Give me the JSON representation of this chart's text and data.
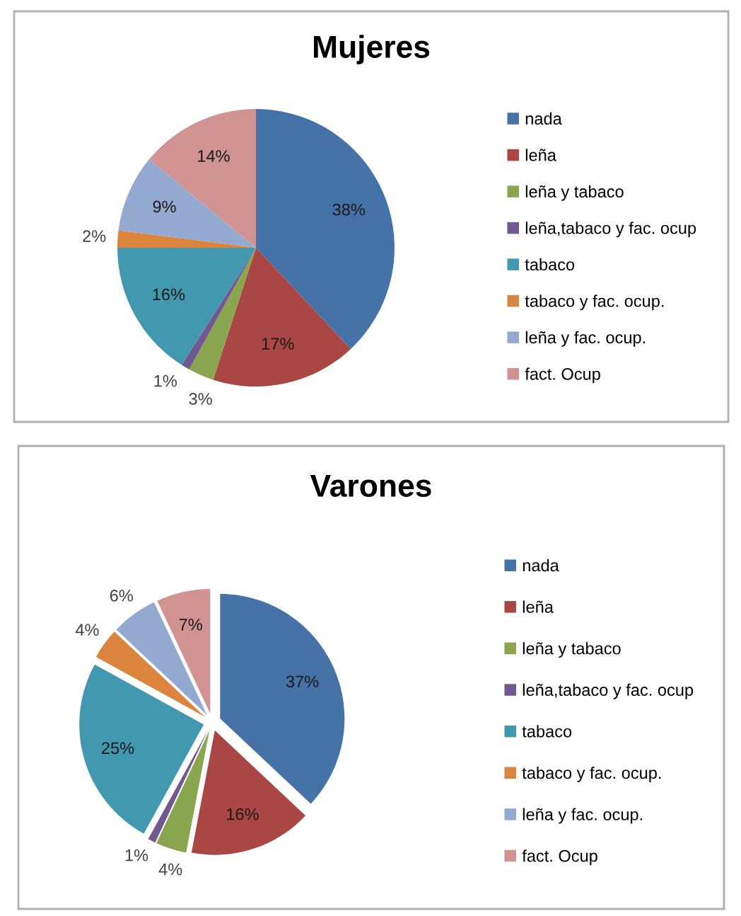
{
  "chart_data": [
    {
      "type": "pie",
      "title": "Mujeres",
      "categories": [
        "nada",
        "leña",
        "leña y tabaco",
        "leña,tabaco y fac. ocup",
        "tabaco",
        "tabaco y fac. ocup.",
        "leña y fac. ocup.",
        "fact. Ocup"
      ],
      "values": [
        38,
        17,
        3,
        1,
        16,
        2,
        9,
        14
      ],
      "value_labels": [
        "38%",
        "17%",
        "3%",
        "1%",
        "16%",
        "2%",
        "9%",
        "14%"
      ],
      "colors": [
        "#4572a7",
        "#aa4643",
        "#89a54e",
        "#71588f",
        "#4198af",
        "#db843d",
        "#93a9cf",
        "#d19392"
      ],
      "legend": "right"
    },
    {
      "type": "pie",
      "title": "Varones",
      "categories": [
        "nada",
        "leña",
        "leña y tabaco",
        "leña,tabaco y fac. ocup",
        "tabaco",
        "tabaco y fac. ocup.",
        "leña y fac. ocup.",
        "fact. Ocup"
      ],
      "values": [
        37,
        16,
        4,
        1,
        25,
        4,
        6,
        7
      ],
      "value_labels": [
        "37%",
        "16%",
        "4%",
        "1%",
        "25%",
        "4%",
        "6%",
        "7%"
      ],
      "colors": [
        "#4572a7",
        "#aa4643",
        "#89a54e",
        "#71588f",
        "#4198af",
        "#db843d",
        "#93a9cf",
        "#d19392"
      ],
      "legend": "right"
    }
  ]
}
